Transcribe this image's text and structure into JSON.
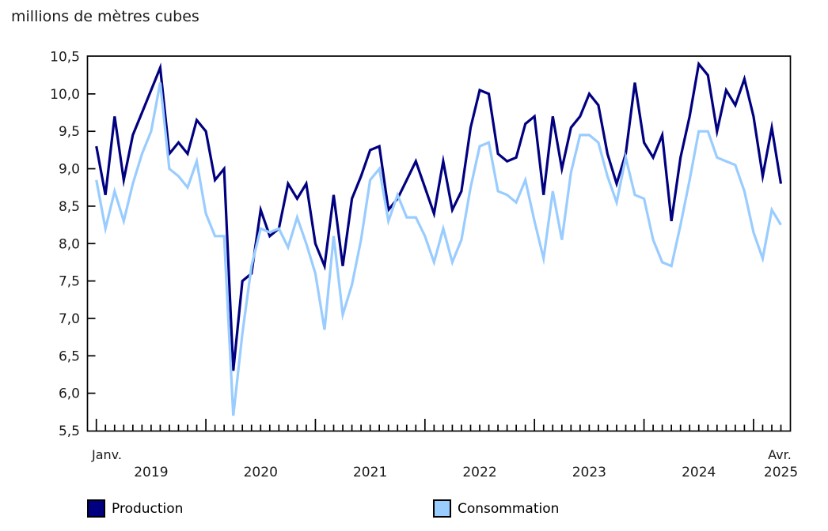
{
  "chart": {
    "title": "millions de mètres cubes"
  },
  "chart_data": {
    "type": "line",
    "title": "millions de mètres cubes",
    "x_start_label": "Janv.",
    "x_end_label": "Avr.",
    "x_months_total": 76,
    "x_first_month": "Janv. 2019",
    "x_last_month": "Avr. 2025",
    "years": [
      "2019",
      "2020",
      "2021",
      "2022",
      "2023",
      "2024",
      "2025"
    ],
    "y_ticks": [
      "10,5",
      "10,0",
      "9,5",
      "9,0",
      "8,5",
      "8,0",
      "7,5",
      "7,0",
      "6,5",
      "6,0",
      "5,5"
    ],
    "ylim": [
      5.5,
      10.5
    ],
    "y_step": 0.5,
    "grid": "off",
    "legend_position": "bottom",
    "frame_color": "#000000",
    "series": [
      {
        "name": "Production",
        "color": "#000080",
        "values": [
          9.3,
          8.65,
          9.7,
          8.85,
          9.45,
          9.75,
          10.05,
          10.35,
          9.2,
          9.35,
          9.2,
          9.65,
          9.5,
          8.85,
          9.0,
          6.3,
          7.5,
          7.6,
          8.45,
          8.1,
          8.2,
          8.8,
          8.6,
          8.8,
          8.0,
          7.7,
          8.65,
          7.7,
          8.6,
          8.9,
          9.25,
          9.3,
          8.45,
          8.6,
          8.85,
          9.1,
          8.75,
          8.4,
          9.1,
          8.45,
          8.7,
          9.55,
          10.05,
          10.0,
          9.2,
          9.1,
          9.15,
          9.6,
          9.7,
          8.65,
          9.7,
          9.0,
          9.55,
          9.7,
          10.0,
          9.85,
          9.2,
          8.8,
          9.2,
          10.15,
          9.35,
          9.15,
          9.45,
          8.3,
          9.15,
          9.7,
          10.4,
          10.25,
          9.5,
          10.05,
          9.85,
          10.2,
          9.7,
          8.9,
          9.55,
          8.8
        ]
      },
      {
        "name": "Consommation",
        "color": "#99ccff",
        "values": [
          8.85,
          8.2,
          8.7,
          8.3,
          8.8,
          9.2,
          9.5,
          10.15,
          9.0,
          8.9,
          8.75,
          9.1,
          8.4,
          8.1,
          8.1,
          5.7,
          6.8,
          7.7,
          8.2,
          8.15,
          8.2,
          7.95,
          8.35,
          8.0,
          7.6,
          6.85,
          8.1,
          7.05,
          7.45,
          8.05,
          8.85,
          9.0,
          8.3,
          8.65,
          8.35,
          8.35,
          8.1,
          7.75,
          8.2,
          7.75,
          8.05,
          8.75,
          9.3,
          9.35,
          8.7,
          8.65,
          8.55,
          8.85,
          8.3,
          7.8,
          8.7,
          8.05,
          8.95,
          9.45,
          9.45,
          9.35,
          8.9,
          8.55,
          9.15,
          8.65,
          8.6,
          8.05,
          7.75,
          7.7,
          8.25,
          8.85,
          9.5,
          9.5,
          9.15,
          9.1,
          9.05,
          8.7,
          8.15,
          7.8,
          8.45,
          8.25
        ]
      }
    ]
  },
  "legend": {
    "production_label": "Production",
    "consommation_label": "Consommation"
  }
}
